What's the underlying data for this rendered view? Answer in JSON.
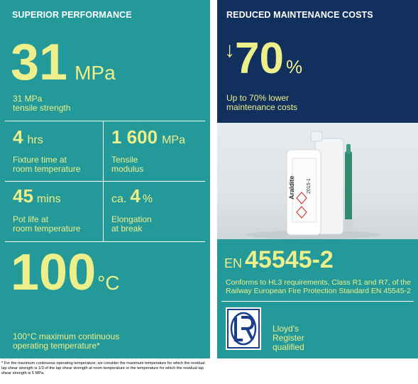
{
  "left": {
    "header": "SUPERIOR PERFORMANCE",
    "tensile": {
      "value": "31",
      "unit": "MPa",
      "label_line1": "31 MPa",
      "label_line2": "tensile strength"
    },
    "fixture": {
      "value": "4",
      "unit": "hrs",
      "label_line1": "Fixture time at",
      "label_line2": "room temperature"
    },
    "modulus": {
      "value": "1 600",
      "unit": "MPa",
      "label_line1": "Tensile",
      "label_line2": "modulus"
    },
    "potlife": {
      "value": "45",
      "unit": "mins",
      "label_line1": "Pot life at",
      "label_line2": "room temperature"
    },
    "elongation": {
      "prefix": "ca.",
      "value": "4",
      "unit": "%",
      "label_line1": "Elongation",
      "label_line2": "at break"
    },
    "temperature": {
      "value": "100",
      "unit": "°C",
      "label_line1": "100°C maximum continuous",
      "label_line2": "operating temperature*"
    },
    "footnote": "* For the maximum continuous operating temperature, we consider the maximum temperature for which the residual lap shear strength is 1/3 of the lap shear strength at room temperature or the temperature for which the residual lap shear strength is 5 MPa."
  },
  "right": {
    "header": "REDUCED MAINTENANCE COSTS",
    "reduction": {
      "arrow": "↓",
      "value": "70",
      "unit": "%",
      "label_line1": "Up to 70% lower",
      "label_line2": "maintenance costs"
    },
    "product": {
      "brand": "Araldite",
      "code": "2015-1"
    },
    "standard": {
      "prefix": "EN",
      "value": "45545-2",
      "desc_line1": "Conforms to HL3 requirements, Class R1 and R7, of the",
      "desc_line2": "Railway European Fire Protection Standard EN 45545-2"
    },
    "lloyds": {
      "line1": "Lloyd's",
      "line2": "Register",
      "line3": "qualified"
    }
  },
  "colors": {
    "teal": "#23999a",
    "navy": "#11305e",
    "yellow": "#edf08a"
  }
}
